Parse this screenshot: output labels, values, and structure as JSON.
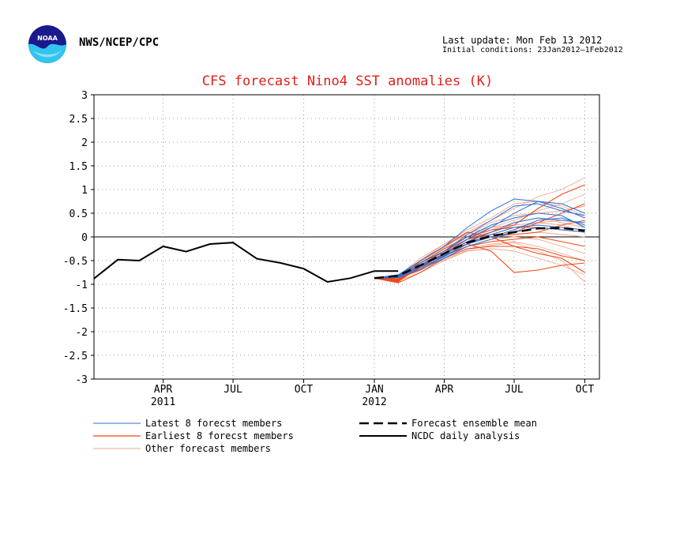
{
  "header": {
    "agency": "NWS/NCEP/CPC",
    "last_update": "Last update: Mon Feb 13 2012",
    "initial_conditions": "Initial conditions: 23Jan2012—1Feb2012"
  },
  "colors": {
    "title": "#e0201a",
    "latest": "#2e6fd1",
    "earliest": "#ee4a1a",
    "other": "#f1a58e",
    "analysis": "#000000",
    "grid": "#9a9a9a"
  },
  "chart_data": {
    "type": "line",
    "title": "CFS forecast Nino4 SST anomalies (K)",
    "ylim": [
      -3,
      3
    ],
    "yticks": [
      "3",
      "2.5",
      "2",
      "1.5",
      "1",
      "0.5",
      "0",
      "-0.5",
      "-1",
      "-1.5",
      "-2",
      "-2.5",
      "-3"
    ],
    "x_domain": [
      "2011-01-01",
      "2012-10-20"
    ],
    "xticks": [
      {
        "date": "2011-04-01",
        "label": "APR",
        "sublabel": "2011"
      },
      {
        "date": "2011-07-01",
        "label": "JUL",
        "sublabel": ""
      },
      {
        "date": "2011-10-01",
        "label": "OCT",
        "sublabel": ""
      },
      {
        "date": "2012-01-01",
        "label": "JAN",
        "sublabel": "2012"
      },
      {
        "date": "2012-04-01",
        "label": "APR",
        "sublabel": ""
      },
      {
        "date": "2012-07-01",
        "label": "JUL",
        "sublabel": ""
      },
      {
        "date": "2012-10-01",
        "label": "OCT",
        "sublabel": ""
      }
    ],
    "grid": true,
    "zero_line": true,
    "analysis": {
      "name": "NCDC daily analysis",
      "x": [
        "2011-01-01",
        "2011-02-01",
        "2011-03-01",
        "2011-04-01",
        "2011-05-01",
        "2011-06-01",
        "2011-07-01",
        "2011-08-01",
        "2011-09-01",
        "2011-10-01",
        "2011-11-01",
        "2011-12-01",
        "2012-01-01",
        "2012-02-01"
      ],
      "y": [
        -0.88,
        -0.48,
        -0.5,
        -0.2,
        -0.31,
        -0.15,
        -0.12,
        -0.46,
        -0.55,
        -0.67,
        -0.95,
        -0.87,
        -0.72,
        -0.72
      ]
    },
    "forecast_months": [
      "2012-01-01",
      "2012-02-01",
      "2012-03-01",
      "2012-04-01",
      "2012-05-01",
      "2012-06-01",
      "2012-07-01",
      "2012-08-01",
      "2012-09-01",
      "2012-10-01"
    ],
    "ensemble_mean": {
      "name": "Forecast ensemble mean",
      "y": [
        -0.87,
        -0.82,
        -0.6,
        -0.35,
        -0.12,
        0.02,
        0.1,
        0.18,
        0.19,
        0.13
      ]
    },
    "latest_members": {
      "name": "Latest 8 forecst members",
      "series": [
        [
          -0.87,
          -0.8,
          -0.5,
          -0.2,
          0.2,
          0.55,
          0.8,
          0.75,
          0.6,
          0.4
        ],
        [
          -0.87,
          -0.8,
          -0.55,
          -0.3,
          0.05,
          0.35,
          0.65,
          0.7,
          0.55,
          0.45
        ],
        [
          -0.87,
          -0.85,
          -0.6,
          -0.35,
          -0.05,
          0.2,
          0.5,
          0.75,
          0.7,
          0.5
        ],
        [
          -0.87,
          -0.82,
          -0.62,
          -0.38,
          -0.1,
          0.1,
          0.3,
          0.4,
          0.35,
          0.3
        ],
        [
          -0.87,
          -0.84,
          -0.65,
          -0.42,
          -0.15,
          0.05,
          0.2,
          0.25,
          0.2,
          0.15
        ],
        [
          -0.87,
          -0.86,
          -0.68,
          -0.45,
          -0.2,
          -0.05,
          0.1,
          0.2,
          0.15,
          0.1
        ],
        [
          -0.87,
          -0.83,
          -0.6,
          -0.4,
          -0.15,
          0.0,
          0.15,
          0.35,
          0.4,
          0.25
        ],
        [
          -0.87,
          -0.81,
          -0.55,
          -0.3,
          0.0,
          0.25,
          0.4,
          0.5,
          0.45,
          0.2
        ]
      ]
    },
    "earliest_members": {
      "name": "Earliest 8 forecst members",
      "series": [
        [
          -0.87,
          -0.95,
          -0.6,
          -0.3,
          -0.05,
          0.1,
          0.25,
          0.6,
          0.9,
          1.1
        ],
        [
          -0.87,
          -0.9,
          -0.65,
          -0.35,
          -0.1,
          0.0,
          0.1,
          0.3,
          0.5,
          0.7
        ],
        [
          -0.87,
          -0.92,
          -0.55,
          -0.25,
          0.0,
          0.15,
          0.2,
          0.2,
          0.15,
          0.1
        ],
        [
          -0.87,
          -0.88,
          -0.7,
          -0.4,
          -0.2,
          -0.1,
          -0.05,
          0.0,
          -0.1,
          -0.2
        ],
        [
          -0.87,
          -0.97,
          -0.75,
          -0.45,
          -0.25,
          -0.2,
          -0.2,
          -0.25,
          -0.4,
          -0.5
        ],
        [
          -0.87,
          -0.93,
          -0.6,
          -0.3,
          -0.15,
          -0.3,
          -0.75,
          -0.7,
          -0.6,
          -0.55
        ],
        [
          -0.87,
          -0.9,
          -0.5,
          -0.2,
          0.1,
          0.0,
          -0.2,
          -0.35,
          -0.45,
          -0.75
        ],
        [
          -0.87,
          -0.94,
          -0.62,
          -0.35,
          -0.05,
          0.05,
          0.05,
          0.1,
          0.25,
          0.35
        ]
      ]
    },
    "other_members": {
      "name": "Other forecast members",
      "series": [
        [
          -0.87,
          -0.85,
          -0.5,
          -0.15,
          0.1,
          0.35,
          0.6,
          0.85,
          1.0,
          1.25
        ],
        [
          -0.87,
          -0.82,
          -0.45,
          -0.15,
          0.15,
          0.4,
          0.7,
          0.75,
          0.65,
          0.45
        ],
        [
          -0.87,
          -0.88,
          -0.55,
          -0.25,
          0.0,
          0.2,
          0.35,
          0.55,
          0.7,
          0.9
        ],
        [
          -0.87,
          -0.86,
          -0.6,
          -0.3,
          -0.05,
          0.15,
          0.3,
          0.4,
          0.3,
          0.2
        ],
        [
          -0.87,
          -0.9,
          -0.65,
          -0.4,
          -0.15,
          0.0,
          0.05,
          0.1,
          0.05,
          0.0
        ],
        [
          -0.87,
          -0.84,
          -0.7,
          -0.45,
          -0.25,
          -0.15,
          -0.1,
          -0.2,
          -0.35,
          -0.5
        ],
        [
          -0.87,
          -0.92,
          -0.75,
          -0.5,
          -0.3,
          -0.25,
          -0.3,
          -0.45,
          -0.6,
          -0.8
        ],
        [
          -0.87,
          -0.8,
          -0.58,
          -0.35,
          -0.1,
          0.05,
          0.2,
          0.3,
          0.25,
          0.1
        ],
        [
          -0.87,
          -0.83,
          -0.5,
          -0.2,
          0.05,
          0.3,
          0.45,
          0.5,
          0.55,
          0.65
        ],
        [
          -0.87,
          -0.87,
          -0.62,
          -0.38,
          -0.2,
          -0.05,
          0.0,
          -0.05,
          -0.2,
          -0.35
        ],
        [
          -0.87,
          -0.89,
          -0.52,
          -0.22,
          0.08,
          0.2,
          0.25,
          0.3,
          0.35,
          0.3
        ],
        [
          -0.87,
          -0.85,
          -0.66,
          -0.48,
          -0.28,
          -0.18,
          -0.12,
          -0.3,
          -0.5,
          -0.95
        ]
      ]
    },
    "legend": [
      {
        "label": "Latest 8 forecst members",
        "style": "latest"
      },
      {
        "label": "Earliest 8 forecst members",
        "style": "earliest"
      },
      {
        "label": "Other forecast members",
        "style": "other"
      },
      {
        "label": "Forecast ensemble mean",
        "style": "mean"
      },
      {
        "label": "NCDC daily analysis",
        "style": "analysis"
      }
    ]
  }
}
